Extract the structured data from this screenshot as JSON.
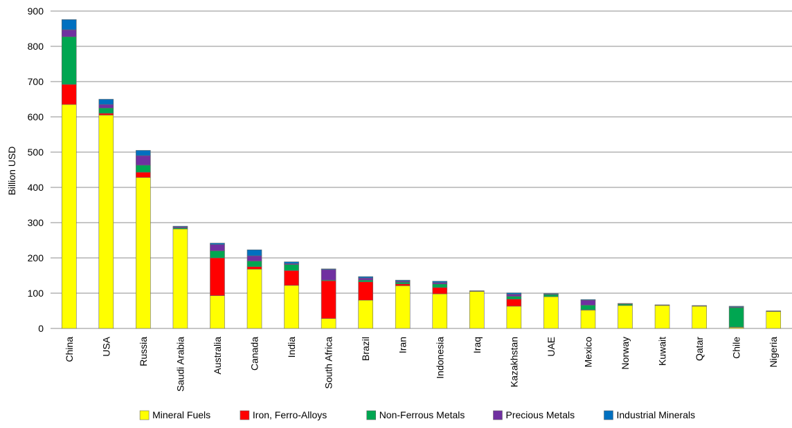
{
  "chart_data": {
    "type": "bar",
    "stacked": true,
    "title": "",
    "xlabel": "",
    "ylabel": "Billion USD",
    "ylim": [
      0,
      900
    ],
    "yticks": [
      0,
      100,
      200,
      300,
      400,
      500,
      600,
      700,
      800,
      900
    ],
    "grid": true,
    "legend_position": "bottom",
    "categories": [
      "China",
      "USA",
      "Russia",
      "Saudi Arabia",
      "Australia",
      "Canada",
      "India",
      "South Africa",
      "Brazil",
      "Iran",
      "Indonesia",
      "Iraq",
      "Kazakhstan",
      "UAE",
      "Mexico",
      "Norway",
      "Kuwait",
      "Qatar",
      "Chile",
      "Nigeria"
    ],
    "series": [
      {
        "name": "Mineral Fuels",
        "color": "#ffff00",
        "values": [
          635,
          605,
          428,
          282,
          93,
          168,
          122,
          28,
          80,
          121,
          98,
          105,
          63,
          90,
          52,
          65,
          65,
          63,
          3,
          48
        ]
      },
      {
        "name": "Iron, Ferro-Alloys",
        "color": "#ff0000",
        "values": [
          57,
          5,
          15,
          0,
          107,
          7,
          42,
          107,
          52,
          5,
          18,
          0,
          20,
          0,
          1,
          0,
          0,
          0,
          1,
          0
        ]
      },
      {
        "name": "Non-Ferrous Metals",
        "color": "#00a651",
        "values": [
          135,
          15,
          20,
          3,
          20,
          16,
          17,
          2,
          5,
          5,
          10,
          1,
          8,
          6,
          13,
          4,
          1,
          1,
          55,
          1
        ]
      },
      {
        "name": "Precious Metals",
        "color": "#7030a0",
        "values": [
          20,
          10,
          27,
          3,
          18,
          15,
          3,
          30,
          6,
          3,
          4,
          0,
          6,
          1,
          14,
          1,
          0,
          0,
          2,
          0
        ]
      },
      {
        "name": "Industrial Minerals",
        "color": "#0070c0",
        "values": [
          29,
          15,
          15,
          2,
          4,
          17,
          5,
          2,
          4,
          3,
          4,
          1,
          4,
          2,
          2,
          1,
          1,
          1,
          2,
          1
        ]
      }
    ]
  }
}
